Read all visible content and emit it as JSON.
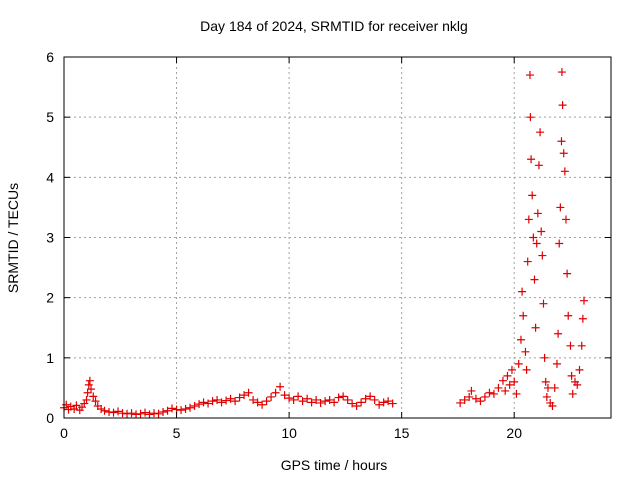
{
  "chart_data": {
    "type": "scatter",
    "title": "Day 184 of 2024, SRMTID for receiver nklg",
    "xlabel": "GPS time / hours",
    "ylabel": "SRMTID / TECUs",
    "xlim": [
      0,
      24.3
    ],
    "ylim": [
      0,
      6
    ],
    "xticks": [
      0,
      5,
      10,
      15,
      20
    ],
    "xtick_labels": [
      "0",
      "5",
      "10",
      "15",
      "20"
    ],
    "yticks": [
      0,
      1,
      2,
      3,
      4,
      5,
      6
    ],
    "ytick_labels": [
      "0",
      "1",
      "2",
      "3",
      "4",
      "5",
      "6"
    ],
    "grid": true,
    "marker": "+",
    "color": "#e00000",
    "series": [
      {
        "name": "SRMTID",
        "points": [
          [
            0.0,
            0.17
          ],
          [
            0.1,
            0.22
          ],
          [
            0.2,
            0.14
          ],
          [
            0.3,
            0.19
          ],
          [
            0.45,
            0.15
          ],
          [
            0.55,
            0.21
          ],
          [
            0.7,
            0.13
          ],
          [
            0.8,
            0.18
          ],
          [
            0.9,
            0.24
          ],
          [
            1.0,
            0.3
          ],
          [
            1.05,
            0.42
          ],
          [
            1.1,
            0.55
          ],
          [
            1.15,
            0.62
          ],
          [
            1.2,
            0.48
          ],
          [
            1.3,
            0.36
          ],
          [
            1.4,
            0.28
          ],
          [
            1.5,
            0.2
          ],
          [
            1.65,
            0.15
          ],
          [
            1.8,
            0.12
          ],
          [
            2.0,
            0.1
          ],
          [
            2.2,
            0.09
          ],
          [
            2.4,
            0.11
          ],
          [
            2.6,
            0.08
          ],
          [
            2.8,
            0.07
          ],
          [
            3.0,
            0.08
          ],
          [
            3.2,
            0.06
          ],
          [
            3.4,
            0.07
          ],
          [
            3.6,
            0.09
          ],
          [
            3.8,
            0.06
          ],
          [
            4.0,
            0.08
          ],
          [
            4.2,
            0.07
          ],
          [
            4.4,
            0.1
          ],
          [
            4.6,
            0.12
          ],
          [
            4.8,
            0.16
          ],
          [
            5.0,
            0.14
          ],
          [
            5.2,
            0.13
          ],
          [
            5.4,
            0.15
          ],
          [
            5.6,
            0.17
          ],
          [
            5.8,
            0.2
          ],
          [
            6.0,
            0.23
          ],
          [
            6.2,
            0.26
          ],
          [
            6.4,
            0.24
          ],
          [
            6.6,
            0.28
          ],
          [
            6.8,
            0.3
          ],
          [
            7.0,
            0.26
          ],
          [
            7.2,
            0.29
          ],
          [
            7.4,
            0.32
          ],
          [
            7.6,
            0.28
          ],
          [
            7.8,
            0.34
          ],
          [
            8.0,
            0.38
          ],
          [
            8.2,
            0.42
          ],
          [
            8.4,
            0.3
          ],
          [
            8.6,
            0.26
          ],
          [
            8.8,
            0.22
          ],
          [
            9.0,
            0.28
          ],
          [
            9.2,
            0.35
          ],
          [
            9.4,
            0.42
          ],
          [
            9.6,
            0.52
          ],
          [
            9.8,
            0.38
          ],
          [
            10.0,
            0.33
          ],
          [
            10.2,
            0.3
          ],
          [
            10.4,
            0.36
          ],
          [
            10.6,
            0.28
          ],
          [
            10.8,
            0.32
          ],
          [
            11.0,
            0.26
          ],
          [
            11.2,
            0.3
          ],
          [
            11.4,
            0.25
          ],
          [
            11.6,
            0.28
          ],
          [
            11.8,
            0.3
          ],
          [
            12.0,
            0.26
          ],
          [
            12.2,
            0.34
          ],
          [
            12.4,
            0.36
          ],
          [
            12.6,
            0.3
          ],
          [
            12.8,
            0.24
          ],
          [
            13.0,
            0.2
          ],
          [
            13.2,
            0.26
          ],
          [
            13.4,
            0.32
          ],
          [
            13.6,
            0.36
          ],
          [
            13.8,
            0.3
          ],
          [
            14.0,
            0.22
          ],
          [
            14.2,
            0.26
          ],
          [
            14.4,
            0.28
          ],
          [
            14.6,
            0.24
          ],
          [
            17.6,
            0.25
          ],
          [
            17.8,
            0.3
          ],
          [
            18.0,
            0.35
          ],
          [
            18.1,
            0.45
          ],
          [
            18.3,
            0.32
          ],
          [
            18.5,
            0.28
          ],
          [
            18.7,
            0.35
          ],
          [
            18.9,
            0.42
          ],
          [
            19.1,
            0.4
          ],
          [
            19.3,
            0.5
          ],
          [
            19.5,
            0.62
          ],
          [
            19.6,
            0.45
          ],
          [
            19.7,
            0.7
          ],
          [
            19.8,
            0.55
          ],
          [
            19.9,
            0.8
          ],
          [
            20.0,
            0.6
          ],
          [
            20.1,
            0.4
          ],
          [
            20.2,
            0.9
          ],
          [
            20.3,
            1.3
          ],
          [
            20.35,
            2.1
          ],
          [
            20.4,
            1.7
          ],
          [
            20.5,
            1.1
          ],
          [
            20.55,
            0.8
          ],
          [
            20.6,
            2.6
          ],
          [
            20.65,
            3.3
          ],
          [
            20.7,
            5.7
          ],
          [
            20.72,
            5.0
          ],
          [
            20.75,
            4.3
          ],
          [
            20.8,
            3.7
          ],
          [
            20.85,
            3.0
          ],
          [
            20.9,
            2.3
          ],
          [
            20.95,
            1.5
          ],
          [
            21.0,
            2.9
          ],
          [
            21.05,
            3.4
          ],
          [
            21.1,
            4.2
          ],
          [
            21.15,
            4.75
          ],
          [
            21.2,
            3.1
          ],
          [
            21.25,
            2.7
          ],
          [
            21.3,
            1.9
          ],
          [
            21.35,
            1.0
          ],
          [
            21.4,
            0.6
          ],
          [
            21.45,
            0.35
          ],
          [
            21.5,
            0.5
          ],
          [
            21.6,
            0.25
          ],
          [
            21.7,
            0.2
          ],
          [
            21.8,
            0.5
          ],
          [
            21.9,
            0.9
          ],
          [
            21.95,
            1.4
          ],
          [
            22.0,
            2.9
          ],
          [
            22.05,
            3.5
          ],
          [
            22.1,
            4.6
          ],
          [
            22.12,
            5.75
          ],
          [
            22.15,
            5.2
          ],
          [
            22.2,
            4.4
          ],
          [
            22.25,
            4.1
          ],
          [
            22.3,
            3.3
          ],
          [
            22.35,
            2.4
          ],
          [
            22.4,
            1.7
          ],
          [
            22.5,
            1.2
          ],
          [
            22.55,
            0.7
          ],
          [
            22.6,
            0.4
          ],
          [
            22.7,
            0.6
          ],
          [
            22.8,
            0.55
          ],
          [
            22.9,
            0.8
          ],
          [
            23.0,
            1.2
          ],
          [
            23.05,
            1.65
          ],
          [
            23.1,
            1.95
          ]
        ]
      }
    ]
  }
}
